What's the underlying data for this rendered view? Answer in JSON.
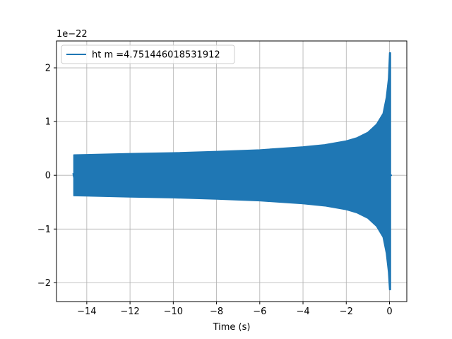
{
  "chart_data": {
    "type": "line",
    "title": "",
    "xlabel": "Time (s)",
    "ylabel": "",
    "y_offset_label": "1e−22",
    "xlim": [
      -15.4,
      0.8
    ],
    "ylim": [
      -2.35,
      2.5
    ],
    "x_ticks": [
      -14,
      -12,
      -10,
      -8,
      -6,
      -4,
      -2,
      0
    ],
    "x_tick_labels": [
      "−14",
      "−12",
      "−10",
      "−8",
      "−6",
      "−4",
      "−2",
      "0"
    ],
    "y_ticks": [
      -2,
      -1,
      0,
      1,
      2
    ],
    "y_tick_labels": [
      "−2",
      "−1",
      "0",
      "1",
      "2"
    ],
    "grid": true,
    "legend_placement": "top-left",
    "series": [
      {
        "name": "ht m =4.751446018531912",
        "color": "#1f77b4",
        "rendering": "dense-oscillation-envelope",
        "x_start": -14.6,
        "x_end": 0.05,
        "envelope_x": [
          -14.6,
          -12,
          -10,
          -8,
          -6,
          -4,
          -3,
          -2,
          -1.5,
          -1,
          -0.6,
          -0.3,
          -0.15,
          -0.05,
          0
        ],
        "envelope_upper": [
          0.38,
          0.405,
          0.42,
          0.445,
          0.475,
          0.53,
          0.57,
          0.64,
          0.7,
          0.8,
          0.95,
          1.15,
          1.45,
          1.8,
          2.28
        ],
        "envelope_lower": [
          -0.38,
          -0.405,
          -0.42,
          -0.445,
          -0.475,
          -0.53,
          -0.57,
          -0.64,
          -0.7,
          -0.8,
          -0.95,
          -1.15,
          -1.45,
          -1.8,
          -2.13
        ]
      }
    ]
  }
}
